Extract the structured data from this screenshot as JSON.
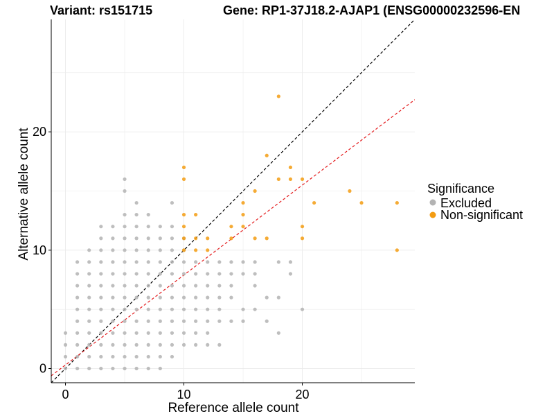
{
  "chart_data": {
    "type": "scatter",
    "title_left": "Variant: rs151715",
    "title_right": "Gene: RP1-37J18.2-AJAP1 (ENSG00000232596-EN",
    "xlabel": "Reference allele count",
    "ylabel": "Alternative allele count",
    "xlim": [
      -1.2,
      29.5
    ],
    "ylim": [
      -1.2,
      29.5
    ],
    "xticks": [
      0,
      10,
      20
    ],
    "yticks": [
      0,
      10,
      20
    ],
    "grid": true,
    "legend": {
      "title": "Significance",
      "placement": "right",
      "entries": [
        {
          "label": "Excluded",
          "color": "#b3b3b3"
        },
        {
          "label": "Non-significant",
          "color": "#f39c12"
        }
      ]
    },
    "reference_lines": [
      {
        "slope": 1,
        "intercept": 0,
        "color": "#000000",
        "style": "dashed"
      },
      {
        "slope": 0.76,
        "intercept": 0.3,
        "color": "#e41a1c",
        "style": "dashed"
      }
    ],
    "series": [
      {
        "name": "Excluded",
        "color": "#b3b3b3",
        "points": [
          [
            0,
            0
          ],
          [
            0,
            1
          ],
          [
            0,
            2
          ],
          [
            0,
            3
          ],
          [
            1,
            0
          ],
          [
            1,
            1
          ],
          [
            1,
            2
          ],
          [
            1,
            3
          ],
          [
            1,
            4
          ],
          [
            1,
            5
          ],
          [
            1,
            6
          ],
          [
            1,
            7
          ],
          [
            1,
            8
          ],
          [
            1,
            9
          ],
          [
            2,
            0
          ],
          [
            2,
            1
          ],
          [
            2,
            2
          ],
          [
            2,
            3
          ],
          [
            2,
            4
          ],
          [
            2,
            5
          ],
          [
            2,
            6
          ],
          [
            2,
            7
          ],
          [
            2,
            8
          ],
          [
            2,
            9
          ],
          [
            2,
            10
          ],
          [
            3,
            0
          ],
          [
            3,
            1
          ],
          [
            3,
            2
          ],
          [
            3,
            3
          ],
          [
            3,
            4
          ],
          [
            3,
            5
          ],
          [
            3,
            6
          ],
          [
            3,
            7
          ],
          [
            3,
            8
          ],
          [
            3,
            9
          ],
          [
            3,
            10
          ],
          [
            3,
            11
          ],
          [
            3,
            12
          ],
          [
            4,
            0
          ],
          [
            4,
            1
          ],
          [
            4,
            2
          ],
          [
            4,
            3
          ],
          [
            4,
            4
          ],
          [
            4,
            5
          ],
          [
            4,
            6
          ],
          [
            4,
            7
          ],
          [
            4,
            8
          ],
          [
            4,
            9
          ],
          [
            4,
            10
          ],
          [
            4,
            11
          ],
          [
            4,
            12
          ],
          [
            5,
            0
          ],
          [
            5,
            1
          ],
          [
            5,
            2
          ],
          [
            5,
            3
          ],
          [
            5,
            4
          ],
          [
            5,
            5
          ],
          [
            5,
            6
          ],
          [
            5,
            7
          ],
          [
            5,
            8
          ],
          [
            5,
            9
          ],
          [
            5,
            10
          ],
          [
            5,
            11
          ],
          [
            5,
            12
          ],
          [
            5,
            13
          ],
          [
            5,
            15
          ],
          [
            5,
            16
          ],
          [
            6,
            0
          ],
          [
            6,
            1
          ],
          [
            6,
            2
          ],
          [
            6,
            3
          ],
          [
            6,
            4
          ],
          [
            6,
            5
          ],
          [
            6,
            6
          ],
          [
            6,
            7
          ],
          [
            6,
            8
          ],
          [
            6,
            9
          ],
          [
            6,
            10
          ],
          [
            6,
            11
          ],
          [
            6,
            12
          ],
          [
            6,
            13
          ],
          [
            6,
            14
          ],
          [
            7,
            0
          ],
          [
            7,
            1
          ],
          [
            7,
            2
          ],
          [
            7,
            3
          ],
          [
            7,
            4
          ],
          [
            7,
            5
          ],
          [
            7,
            6
          ],
          [
            7,
            7
          ],
          [
            7,
            8
          ],
          [
            7,
            9
          ],
          [
            7,
            10
          ],
          [
            7,
            11
          ],
          [
            7,
            12
          ],
          [
            7,
            13
          ],
          [
            8,
            0
          ],
          [
            8,
            1
          ],
          [
            8,
            2
          ],
          [
            8,
            3
          ],
          [
            8,
            4
          ],
          [
            8,
            5
          ],
          [
            8,
            6
          ],
          [
            8,
            7
          ],
          [
            8,
            8
          ],
          [
            8,
            9
          ],
          [
            8,
            10
          ],
          [
            8,
            11
          ],
          [
            8,
            12
          ],
          [
            9,
            1
          ],
          [
            9,
            2
          ],
          [
            9,
            3
          ],
          [
            9,
            4
          ],
          [
            9,
            5
          ],
          [
            9,
            6
          ],
          [
            9,
            7
          ],
          [
            9,
            8
          ],
          [
            9,
            9
          ],
          [
            9,
            10
          ],
          [
            9,
            11
          ],
          [
            9,
            12
          ],
          [
            9,
            14
          ],
          [
            10,
            2
          ],
          [
            10,
            3
          ],
          [
            10,
            4
          ],
          [
            10,
            5
          ],
          [
            10,
            6
          ],
          [
            10,
            7
          ],
          [
            10,
            8
          ],
          [
            10,
            9
          ],
          [
            10,
            10
          ],
          [
            10,
            11
          ],
          [
            11,
            2
          ],
          [
            11,
            3
          ],
          [
            11,
            4
          ],
          [
            11,
            5
          ],
          [
            11,
            6
          ],
          [
            11,
            7
          ],
          [
            11,
            8
          ],
          [
            11,
            9
          ],
          [
            12,
            2
          ],
          [
            12,
            3
          ],
          [
            12,
            4
          ],
          [
            12,
            5
          ],
          [
            12,
            6
          ],
          [
            12,
            7
          ],
          [
            12,
            8
          ],
          [
            12,
            9
          ],
          [
            13,
            2
          ],
          [
            13,
            4
          ],
          [
            13,
            5
          ],
          [
            13,
            6
          ],
          [
            13,
            7
          ],
          [
            13,
            8
          ],
          [
            13,
            9
          ],
          [
            14,
            4
          ],
          [
            14,
            6
          ],
          [
            14,
            7
          ],
          [
            14,
            8
          ],
          [
            14,
            9
          ],
          [
            15,
            4
          ],
          [
            15,
            5
          ],
          [
            15,
            8
          ],
          [
            15,
            9
          ],
          [
            16,
            5
          ],
          [
            16,
            7
          ],
          [
            16,
            8
          ],
          [
            16,
            9
          ],
          [
            17,
            4
          ],
          [
            17,
            6
          ],
          [
            18,
            3
          ],
          [
            18,
            6
          ],
          [
            18,
            9
          ],
          [
            19,
            8
          ],
          [
            19,
            9
          ],
          [
            20,
            5
          ]
        ]
      },
      {
        "name": "Non-significant",
        "color": "#f39c12",
        "points": [
          [
            10,
            10
          ],
          [
            10,
            11
          ],
          [
            10,
            12
          ],
          [
            10,
            13
          ],
          [
            10,
            16
          ],
          [
            10,
            17
          ],
          [
            11,
            10
          ],
          [
            11,
            11
          ],
          [
            11,
            13
          ],
          [
            12,
            10
          ],
          [
            12,
            11
          ],
          [
            14,
            11
          ],
          [
            14,
            12
          ],
          [
            15,
            12
          ],
          [
            15,
            13
          ],
          [
            15,
            14
          ],
          [
            16,
            11
          ],
          [
            16,
            15
          ],
          [
            17,
            11
          ],
          [
            17,
            18
          ],
          [
            18,
            16
          ],
          [
            18,
            23
          ],
          [
            19,
            16
          ],
          [
            19,
            17
          ],
          [
            20,
            11
          ],
          [
            20,
            12
          ],
          [
            20,
            16
          ],
          [
            21,
            14
          ],
          [
            24,
            15
          ],
          [
            25,
            14
          ],
          [
            28,
            10
          ],
          [
            28,
            14
          ]
        ]
      }
    ]
  }
}
